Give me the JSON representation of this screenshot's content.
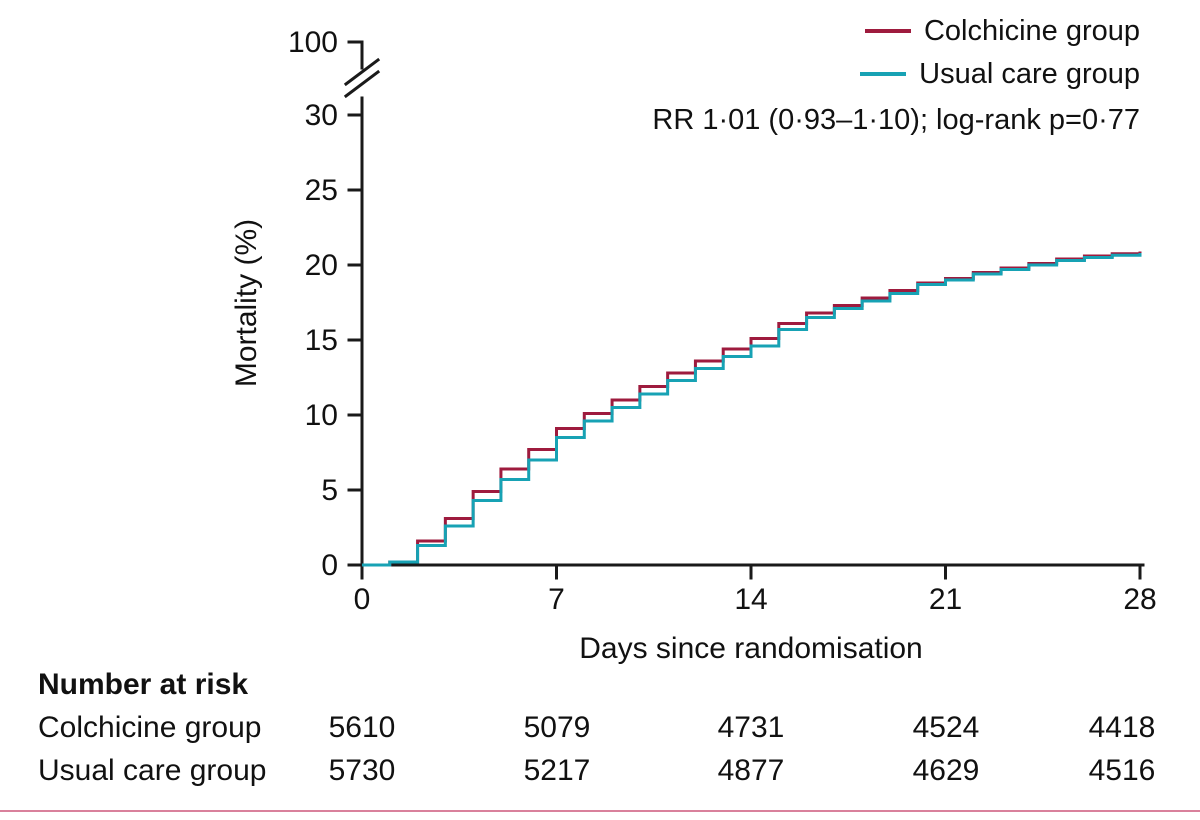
{
  "chart_data": {
    "type": "line",
    "step": true,
    "title": "",
    "xlabel": "Days since randomisation",
    "ylabel": "Mortality (%)",
    "annotation": "RR 1·01 (0·93–1·10); log-rank p=0·77",
    "xlim": [
      0,
      28
    ],
    "ylim": [
      0,
      30
    ],
    "y_axis_break": true,
    "y_break_label": "100",
    "x_ticks": [
      0,
      7,
      14,
      21,
      28
    ],
    "y_ticks": [
      0,
      5,
      10,
      15,
      20,
      25,
      30
    ],
    "legend_position": "top-right",
    "grid": false,
    "x": [
      0,
      1,
      2,
      3,
      4,
      5,
      6,
      7,
      8,
      9,
      10,
      11,
      12,
      13,
      14,
      15,
      16,
      17,
      18,
      19,
      20,
      21,
      22,
      23,
      24,
      25,
      26,
      27,
      28
    ],
    "series": [
      {
        "name": "Colchicine group",
        "color": "#9e1b3e",
        "values": [
          0,
          0.2,
          1.6,
          3.1,
          4.9,
          6.4,
          7.7,
          9.1,
          10.1,
          11.0,
          11.9,
          12.8,
          13.6,
          14.4,
          15.1,
          16.1,
          16.8,
          17.3,
          17.8,
          18.3,
          18.8,
          19.1,
          19.5,
          19.8,
          20.1,
          20.4,
          20.6,
          20.75,
          20.9
        ]
      },
      {
        "name": "Usual care group",
        "color": "#17a2b4",
        "values": [
          0,
          0.2,
          1.3,
          2.6,
          4.3,
          5.7,
          7.0,
          8.5,
          9.6,
          10.5,
          11.4,
          12.3,
          13.1,
          13.9,
          14.6,
          15.7,
          16.5,
          17.1,
          17.6,
          18.1,
          18.7,
          19.0,
          19.4,
          19.7,
          20.0,
          20.3,
          20.5,
          20.65,
          20.8
        ]
      }
    ]
  },
  "risk_table": {
    "title": "Number at risk",
    "timepoints": [
      0,
      7,
      14,
      21,
      28
    ],
    "rows": [
      {
        "label": "Colchicine group",
        "values": [
          "5610",
          "5079",
          "4731",
          "4524",
          "4418"
        ]
      },
      {
        "label": "Usual care group",
        "values": [
          "5730",
          "5217",
          "4877",
          "4629",
          "4516"
        ]
      }
    ]
  },
  "colors": {
    "axis": "#1a1a1a",
    "bottom_rule": "#d9819c"
  }
}
